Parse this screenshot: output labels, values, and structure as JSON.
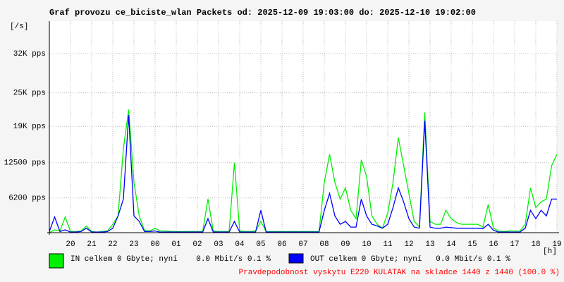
{
  "chart_data": {
    "type": "line",
    "title": "Graf provozu ce_biciste_wlan Packets od: 2025-12-09 19:03:00 do: 2025-12-10 19:02:00",
    "y_label": "[/s]",
    "x_label": "[h]",
    "note": "Pravdepodobnost vyskytu E220 KULATAK na skladce 1440 z 1440 (100.0 %)",
    "grid": true,
    "xlim": [
      0,
      24
    ],
    "ylim": [
      0,
      37800
    ],
    "xticks": [
      {
        "value": 1,
        "label": "20"
      },
      {
        "value": 2,
        "label": "21"
      },
      {
        "value": 3,
        "label": "22"
      },
      {
        "value": 4,
        "label": "23"
      },
      {
        "value": 5,
        "label": "00"
      },
      {
        "value": 6,
        "label": "01"
      },
      {
        "value": 7,
        "label": "02"
      },
      {
        "value": 8,
        "label": "03"
      },
      {
        "value": 9,
        "label": "04"
      },
      {
        "value": 10,
        "label": "05"
      },
      {
        "value": 11,
        "label": "06"
      },
      {
        "value": 12,
        "label": "07"
      },
      {
        "value": 13,
        "label": "08"
      },
      {
        "value": 14,
        "label": "09"
      },
      {
        "value": 15,
        "label": "10"
      },
      {
        "value": 16,
        "label": "11"
      },
      {
        "value": 17,
        "label": "12"
      },
      {
        "value": 18,
        "label": "13"
      },
      {
        "value": 19,
        "label": "14"
      },
      {
        "value": 20,
        "label": "15"
      },
      {
        "value": 21,
        "label": "16"
      },
      {
        "value": 22,
        "label": "17"
      },
      {
        "value": 23,
        "label": "18"
      },
      {
        "value": 24,
        "label": "19"
      }
    ],
    "yticks": [
      {
        "value": 6200,
        "label": "6200 pps"
      },
      {
        "value": 12500,
        "label": "12500 pps"
      },
      {
        "value": 19000,
        "label": "19K pps"
      },
      {
        "value": 25000,
        "label": "25K pps"
      },
      {
        "value": 32000,
        "label": "32K pps"
      }
    ],
    "x": [
      0,
      0.25,
      0.5,
      0.75,
      1,
      1.25,
      1.5,
      1.75,
      2,
      2.25,
      2.5,
      2.75,
      3,
      3.25,
      3.5,
      3.75,
      4,
      4.25,
      4.5,
      4.75,
      5,
      5.25,
      5.5,
      5.75,
      6,
      6.25,
      6.5,
      6.75,
      7,
      7.25,
      7.5,
      7.75,
      8,
      8.25,
      8.5,
      8.75,
      9,
      9.25,
      9.5,
      9.75,
      10,
      10.25,
      10.5,
      10.75,
      11,
      11.25,
      11.5,
      11.75,
      12,
      12.25,
      12.5,
      12.75,
      13,
      13.25,
      13.5,
      13.75,
      14,
      14.25,
      14.5,
      14.75,
      15,
      15.25,
      15.5,
      15.75,
      16,
      16.25,
      16.5,
      16.75,
      17,
      17.25,
      17.5,
      17.75,
      18,
      18.25,
      18.5,
      18.75,
      19,
      19.25,
      19.5,
      19.75,
      20,
      20.25,
      20.5,
      20.75,
      21,
      21.25,
      21.5,
      21.75,
      22,
      22.25,
      22.5,
      22.75,
      23,
      23.25,
      23.5,
      23.75,
      24
    ],
    "series": [
      {
        "name": "IN celkem 0 Gbyte; nyní    0.0 Mbit/s 0.1 %",
        "color": "#00f000",
        "values": [
          0,
          500,
          300,
          2800,
          200,
          200,
          300,
          1200,
          200,
          100,
          200,
          300,
          1500,
          3000,
          15000,
          22000,
          9000,
          3000,
          400,
          300,
          800,
          300,
          300,
          200,
          200,
          200,
          200,
          200,
          200,
          200,
          6000,
          300,
          200,
          200,
          200,
          12500,
          300,
          200,
          200,
          300,
          2000,
          200,
          200,
          200,
          200,
          200,
          200,
          200,
          200,
          200,
          200,
          200,
          9000,
          14000,
          9000,
          6000,
          8000,
          4000,
          2500,
          13000,
          10000,
          3000,
          1500,
          800,
          3500,
          9000,
          17000,
          12000,
          7000,
          2000,
          1000,
          21500,
          2000,
          1500,
          1500,
          4000,
          2500,
          1800,
          1500,
          1500,
          1500,
          1500,
          1000,
          5000,
          800,
          300,
          200,
          300,
          300,
          300,
          1500,
          8000,
          4500,
          5500,
          6000,
          12000,
          14000
        ]
      },
      {
        "name": "OUT celkem 0 Gbyte; nyní   0.0 Mbit/s 0.1 %",
        "color": "#0000ff",
        "values": [
          200,
          2800,
          200,
          500,
          100,
          100,
          200,
          800,
          100,
          100,
          100,
          200,
          800,
          3000,
          6000,
          21000,
          3000,
          2000,
          200,
          200,
          300,
          100,
          100,
          100,
          100,
          100,
          100,
          100,
          100,
          100,
          2500,
          100,
          100,
          100,
          100,
          2000,
          100,
          100,
          100,
          100,
          4000,
          100,
          100,
          100,
          100,
          100,
          100,
          100,
          100,
          100,
          100,
          100,
          4000,
          7000,
          3000,
          1500,
          2000,
          1000,
          1000,
          6000,
          3000,
          1500,
          1200,
          800,
          1500,
          4500,
          8000,
          5500,
          2500,
          1000,
          800,
          20000,
          1000,
          800,
          800,
          1000,
          900,
          800,
          800,
          800,
          800,
          800,
          700,
          1500,
          400,
          100,
          100,
          100,
          100,
          100,
          800,
          4000,
          2500,
          4000,
          3000,
          6000,
          6000
        ]
      }
    ]
  }
}
